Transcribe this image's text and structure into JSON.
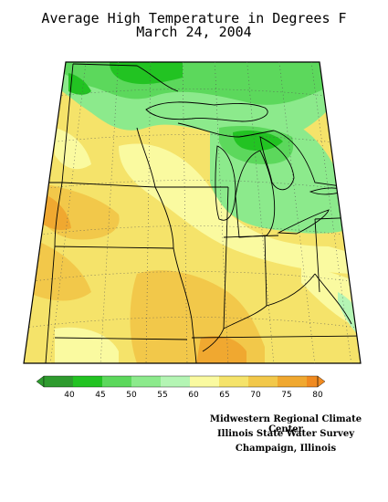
{
  "title": {
    "line1": "Average High Temperature in Degrees F",
    "line2": "March 24, 2004"
  },
  "legend": {
    "ticks": [
      "40",
      "45",
      "50",
      "55",
      "60",
      "65",
      "70",
      "75",
      "80"
    ],
    "colors": [
      "#2e9b2e",
      "#22c322",
      "#5cd85c",
      "#8cea8c",
      "#b4f5b4",
      "#fafaa0",
      "#f5e36a",
      "#f2c84a",
      "#f0a830",
      "#f08a20"
    ]
  },
  "credits": {
    "line1": "Midwestern Regional Climate Center",
    "line2": "Illinois State Water Survey",
    "line3": "Champaign, Illinois"
  }
}
